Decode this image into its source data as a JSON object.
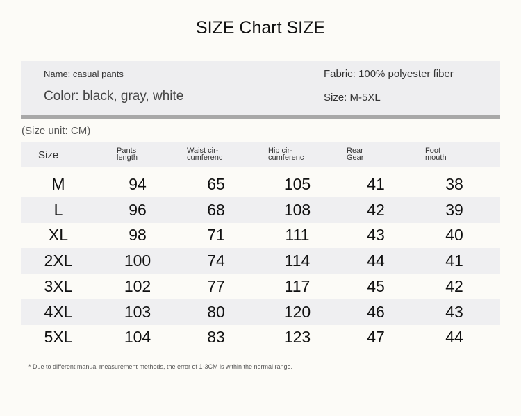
{
  "title": "SIZE Chart SIZE",
  "info": {
    "name": "Name: casual pants",
    "fabric": "Fabric: 100% polyester fiber",
    "color": "Color: black, gray, white",
    "size": "Size: M-5XL"
  },
  "unit": "(Size unit: CM)",
  "headers": [
    "Size",
    "Pants length",
    "Waist cir-cumferenc",
    "Hip cir-cumferenc",
    "Rear Gear",
    "Foot mouth"
  ],
  "headers_lines": [
    [
      "Size"
    ],
    [
      "Pants",
      "length"
    ],
    [
      "Waist cir-",
      "cumferenc"
    ],
    [
      "Hip cir-",
      "cumferenc"
    ],
    [
      "Rear",
      "Gear"
    ],
    [
      "Foot",
      "mouth"
    ]
  ],
  "rows": [
    [
      "M",
      "94",
      "65",
      "105",
      "41",
      "38"
    ],
    [
      "L",
      "96",
      "68",
      "108",
      "42",
      "39"
    ],
    [
      "XL",
      "98",
      "71",
      "111",
      "43",
      "40"
    ],
    [
      "2XL",
      "100",
      "74",
      "114",
      "44",
      "41"
    ],
    [
      "3XL",
      "102",
      "77",
      "117",
      "45",
      "42"
    ],
    [
      "4XL",
      "103",
      "80",
      "120",
      "46",
      "43"
    ],
    [
      "5XL",
      "104",
      "83",
      "123",
      "47",
      "44"
    ]
  ],
  "note": "* Due to different manual measurement methods, the error of 1-3CM is within the normal range."
}
